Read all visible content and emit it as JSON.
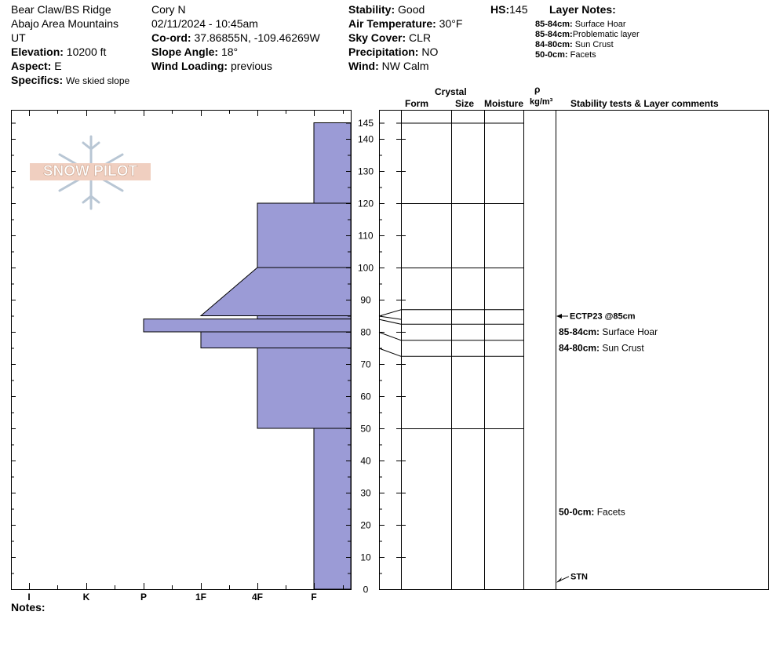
{
  "header": {
    "location": "Bear Claw/BS Ridge",
    "range": "Abajo Area Mountains",
    "state": "UT",
    "elevation_label": "Elevation:",
    "elevation_value": "10200 ft",
    "aspect_label": "Aspect:",
    "aspect_value": "E",
    "specifics_label": "Specifics:",
    "specifics_value": "We skied slope",
    "observer": "Cory N",
    "datetime": "02/11/2024 - 10:45am",
    "coord_label": "Co-ord:",
    "coord_value": "37.86855N, -109.46269W",
    "slope_label": "Slope Angle:",
    "slope_value": "18°",
    "wind_loading_label": "Wind Loading:",
    "wind_loading_value": "previous",
    "stability_label": "Stability:",
    "stability_value": "Good",
    "air_temp_label": "Air Temperature:",
    "air_temp_value": "30°F",
    "sky_label": "Sky Cover:",
    "sky_value": "CLR",
    "precip_label": "Precipitation:",
    "precip_value": "NO",
    "wind_label": "Wind:",
    "wind_value": "NW Calm",
    "hs_label": "HS:",
    "hs_value": "145",
    "layer_notes_label": "Layer Notes:",
    "layer_notes": [
      {
        "range": "85-84cm:",
        "text": "Surface Hoar"
      },
      {
        "range": "85-84cm:",
        "text": "Problematic layer"
      },
      {
        "range": "84-80cm:",
        "text": "Sun Crust"
      },
      {
        "range": "50-0cm:",
        "text": "Facets"
      }
    ]
  },
  "logo": {
    "text": "SNOW PILOT"
  },
  "columns": {
    "crystal": "Crystal",
    "form": "Form",
    "size": "Size",
    "moisture": "Moisture",
    "rho": "ρ",
    "density_unit": "kg/m³",
    "comments": "Stability tests & Layer comments"
  },
  "notes_label": "Notes:",
  "chart_data": {
    "type": "area",
    "title": "",
    "y_label": "",
    "y_range": [
      0,
      145
    ],
    "y_ticks": [
      0,
      10,
      20,
      30,
      40,
      50,
      60,
      70,
      80,
      90,
      100,
      110,
      120,
      130,
      140,
      145
    ],
    "hardness_scale": [
      "I",
      "K",
      "P",
      "1F",
      "4F",
      "F"
    ],
    "hardness_profile": [
      {
        "top": 145,
        "bottom": 120,
        "hardness_top": "F",
        "hardness_bottom": "F"
      },
      {
        "top": 120,
        "bottom": 100,
        "hardness_top": "4F",
        "hardness_bottom": "4F"
      },
      {
        "top": 100,
        "bottom": 85,
        "hardness_top": "4F",
        "hardness_bottom": "1F"
      },
      {
        "top": 85,
        "bottom": 84,
        "hardness_top": "4F",
        "hardness_bottom": "4F"
      },
      {
        "top": 84,
        "bottom": 80,
        "hardness_top": "P",
        "hardness_bottom": "P"
      },
      {
        "top": 80,
        "bottom": 75,
        "hardness_top": "1F",
        "hardness_bottom": "1F"
      },
      {
        "top": 75,
        "bottom": 50,
        "hardness_top": "4F",
        "hardness_bottom": "4F"
      },
      {
        "top": 50,
        "bottom": 0,
        "hardness_top": "F",
        "hardness_bottom": "F"
      }
    ],
    "layer_boundaries": [
      145,
      120,
      100,
      85,
      84,
      80,
      75,
      50
    ],
    "comments": [
      {
        "depth": 85,
        "label": "",
        "text": "ECTP23 @85cm",
        "arrow": true
      },
      {
        "depth": 80,
        "label": "85-84cm:",
        "text": "Surface Hoar"
      },
      {
        "depth": 75,
        "label": "84-80cm:",
        "text": "Sun Crust"
      },
      {
        "depth": 24,
        "label": "50-0cm:",
        "text": "Facets"
      },
      {
        "depth": 2,
        "label": "",
        "text": "STN",
        "arrow": true
      }
    ]
  }
}
